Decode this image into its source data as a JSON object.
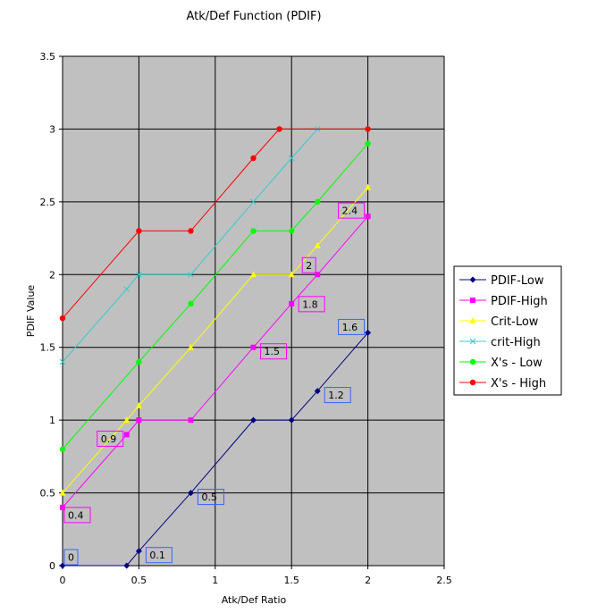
{
  "chart_data": {
    "type": "line",
    "title": "Atk/Def Function (PDIF)",
    "xlabel": "Atk/Def Ratio",
    "ylabel": "PDIF Value",
    "xlim": [
      0,
      2.5
    ],
    "ylim": [
      0,
      3.5
    ],
    "xticks": [
      "0",
      "0.5",
      "1",
      "1.5",
      "2",
      "2.5"
    ],
    "yticks": [
      "0",
      "0.5",
      "1",
      "1.5",
      "2",
      "2.5",
      "3",
      "3.5"
    ],
    "grid": true,
    "legend_position": "right",
    "series": [
      {
        "name": "PDIF-Low",
        "color": "#000080",
        "marker": "diamond",
        "x": [
          0,
          0.42,
          0.5,
          0.84,
          1.25,
          1.5,
          1.67,
          2.0
        ],
        "y": [
          0,
          0,
          0.1,
          0.5,
          1.0,
          1.0,
          1.2,
          1.6
        ]
      },
      {
        "name": "PDIF-High",
        "color": "#ff00ff",
        "marker": "square",
        "x": [
          0,
          0.42,
          0.5,
          0.84,
          1.25,
          1.5,
          1.67,
          2.0
        ],
        "y": [
          0.4,
          0.9,
          1.0,
          1.0,
          1.5,
          1.8,
          2.0,
          2.4
        ]
      },
      {
        "name": "Crit-Low",
        "color": "#ffff00",
        "marker": "triangle",
        "x": [
          0,
          0.42,
          0.5,
          0.84,
          1.25,
          1.5,
          1.67,
          2.0
        ],
        "y": [
          0.5,
          1.0,
          1.1,
          1.5,
          2.0,
          2.0,
          2.2,
          2.6
        ]
      },
      {
        "name": "crit-High",
        "color": "#33cccc",
        "marker": "x",
        "x": [
          0,
          0.42,
          0.5,
          0.84,
          1.25,
          1.5,
          1.67
        ],
        "y": [
          1.4,
          1.9,
          2.0,
          2.0,
          2.5,
          2.8,
          3.0
        ]
      },
      {
        "name": "X's - Low",
        "color": "#00ff00",
        "marker": "circle",
        "x": [
          0,
          0.5,
          0.84,
          1.25,
          1.5,
          1.67,
          2.0
        ],
        "y": [
          0.8,
          1.4,
          1.8,
          2.3,
          2.3,
          2.5,
          2.9
        ]
      },
      {
        "name": "X's - High",
        "color": "#ff0000",
        "marker": "circle",
        "x": [
          0,
          0.5,
          0.84,
          1.25,
          1.42,
          2.0
        ],
        "y": [
          1.7,
          2.3,
          2.3,
          2.8,
          3.0,
          3.0
        ]
      }
    ],
    "annotations": [
      {
        "text": "0",
        "series": "PDIF-Low",
        "x": 0,
        "y": 0
      },
      {
        "text": "0.1",
        "series": "PDIF-Low",
        "x": 0.5,
        "y": 0.1
      },
      {
        "text": "0.5",
        "series": "PDIF-Low",
        "x": 0.84,
        "y": 0.5
      },
      {
        "text": "1.2",
        "series": "PDIF-Low",
        "x": 1.67,
        "y": 1.2
      },
      {
        "text": "1.6",
        "series": "PDIF-Low",
        "x": 2.0,
        "y": 1.6
      },
      {
        "text": "0.4",
        "series": "PDIF-High",
        "x": 0,
        "y": 0.4
      },
      {
        "text": "0.9",
        "series": "PDIF-High",
        "x": 0.42,
        "y": 0.9
      },
      {
        "text": "1.5",
        "series": "PDIF-High",
        "x": 1.25,
        "y": 1.5
      },
      {
        "text": "1.8",
        "series": "PDIF-High",
        "x": 1.5,
        "y": 1.8
      },
      {
        "text": "2",
        "series": "PDIF-High",
        "x": 1.67,
        "y": 2.0
      },
      {
        "text": "2.4",
        "series": "PDIF-High",
        "x": 2.0,
        "y": 2.4
      }
    ]
  }
}
